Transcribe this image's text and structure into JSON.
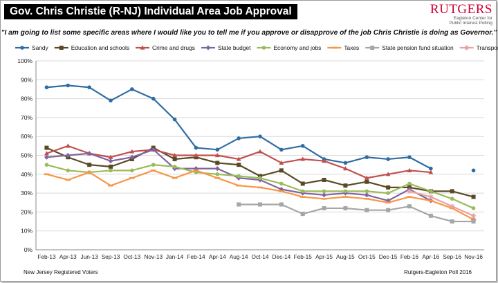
{
  "header": {
    "title": "Gov. Chris Christie (R-NJ) Individual Area Job Approval",
    "logo_text": "RUTGERS",
    "logo_subtext_1": "Eagleton Center for",
    "logo_subtext_2": "Public Interest Polling"
  },
  "question": "\"I am going to list some specific areas where I would like you to tell me if you approve or disapprove of the job Chris Christie is doing as Governor.\"",
  "footer": {
    "left": "New Jersey Registered Voters",
    "right": "Rutgers-Eagleton Poll 2016"
  },
  "chart_data": {
    "type": "line",
    "title": "",
    "xlabel": "",
    "ylabel": "",
    "ylim": [
      0,
      100
    ],
    "y_ticks": [
      "0%",
      "10%",
      "20%",
      "30%",
      "40%",
      "50%",
      "60%",
      "70%",
      "80%",
      "90%",
      "100%"
    ],
    "grid": true,
    "legend_position": "top",
    "categories": [
      "Feb-13",
      "Apr-13",
      "Jun-13",
      "Sep-13",
      "Oct-13",
      "Nov-13",
      "Jan-14",
      "Feb-14",
      "Apr-14",
      "Aug-14",
      "Oct-14",
      "Dec-14",
      "Feb-15",
      "Apr-15",
      "Aug-15",
      "Oct-15",
      "Dec-15",
      "Feb-16",
      "Apr-16",
      "Sep-16",
      "Nov-16"
    ],
    "series": [
      {
        "name": "Sandy",
        "color": "#2e6da4",
        "marker": "circle",
        "values": [
          86,
          87,
          86,
          79,
          85,
          80,
          69,
          54,
          53,
          59,
          60,
          53,
          55,
          48,
          46,
          49,
          48,
          49,
          43,
          null,
          42
        ]
      },
      {
        "name": "Education and schools",
        "color": "#594a25",
        "marker": "square",
        "values": [
          54,
          49,
          45,
          44,
          48,
          54,
          48,
          49,
          46,
          45,
          39,
          42,
          35,
          37,
          34,
          36,
          33,
          33,
          31,
          31,
          28
        ]
      },
      {
        "name": "Crime and drugs",
        "color": "#c0504d",
        "marker": "triangle",
        "values": [
          51,
          55,
          51,
          49,
          52,
          53,
          50,
          50,
          50,
          48,
          52,
          46,
          48,
          47,
          43,
          38,
          40,
          42,
          41,
          null,
          null
        ]
      },
      {
        "name": "State budget",
        "color": "#8064a2",
        "marker": "diamond",
        "values": [
          49,
          50,
          51,
          47,
          49,
          53,
          43,
          43,
          43,
          38,
          37,
          32,
          30,
          29,
          30,
          29,
          26,
          32,
          26,
          null,
          16
        ]
      },
      {
        "name": "Economy and jobs",
        "color": "#9bbb59",
        "marker": "circle",
        "values": [
          45,
          42,
          41,
          42,
          42,
          45,
          44,
          41,
          40,
          39,
          38,
          35,
          31,
          31,
          31,
          31,
          30,
          35,
          31,
          27,
          22
        ]
      },
      {
        "name": "Taxes",
        "color": "#f79646",
        "marker": "dash",
        "values": [
          40,
          37,
          41,
          34,
          38,
          42,
          38,
          42,
          38,
          34,
          33,
          31,
          28,
          27,
          28,
          27,
          25,
          28,
          26,
          22,
          16
        ]
      },
      {
        "name": "State pension fund situation",
        "color": "#a6a6a6",
        "marker": "square",
        "values": [
          null,
          null,
          null,
          null,
          null,
          null,
          null,
          null,
          null,
          24,
          24,
          24,
          19,
          22,
          22,
          21,
          21,
          23,
          18,
          15,
          15
        ]
      },
      {
        "name": "Transportation and infrastructure",
        "color": "#e6a3a3",
        "marker": "star",
        "values": [
          null,
          null,
          null,
          null,
          null,
          null,
          null,
          null,
          null,
          null,
          null,
          null,
          null,
          null,
          null,
          null,
          null,
          31,
          28,
          23,
          18
        ]
      }
    ]
  }
}
